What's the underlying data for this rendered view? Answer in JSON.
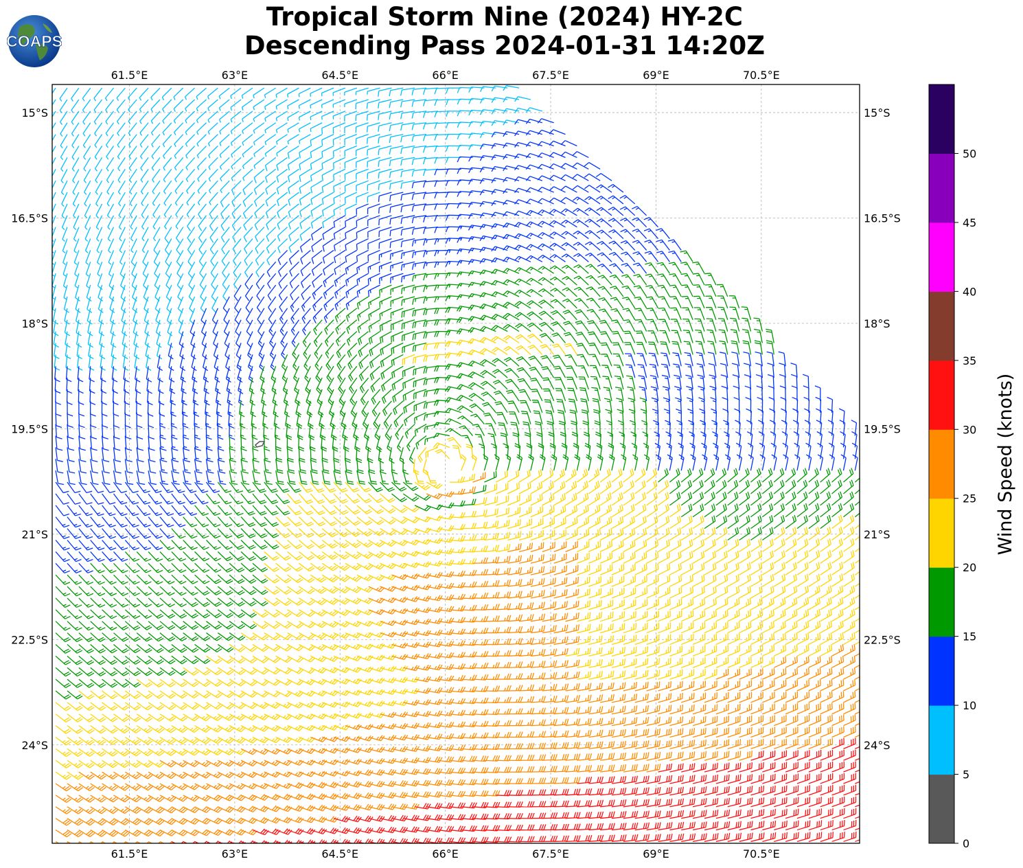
{
  "title": {
    "line1": "Tropical Storm Nine (2024) HY-2C",
    "line2": "Descending Pass 2024-01-31 14:20Z"
  },
  "logo": {
    "text": "COAPS",
    "icon": "globe-icon"
  },
  "map": {
    "lon_range": [
      60.4,
      71.9
    ],
    "lat_range": [
      -25.4,
      -14.6
    ],
    "lon_ticks": [
      "61.5°E",
      "63°E",
      "64.5°E",
      "66°E",
      "67.5°E",
      "69°E",
      "70.5°E"
    ],
    "lat_ticks": [
      "15°S",
      "16.5°S",
      "18°S",
      "19.5°S",
      "21°S",
      "22.5°S",
      "24°S"
    ],
    "gridlines": true,
    "storm_center": {
      "lon": 65.95,
      "lat": -20.1
    }
  },
  "colorbar": {
    "label": "Wind Speed (knots)",
    "ticks": [
      "0",
      "5",
      "10",
      "15",
      "20",
      "25",
      "30",
      "35",
      "40",
      "45",
      "50"
    ],
    "colors": [
      "#595959",
      "#00bfff",
      "#0033ff",
      "#009900",
      "#ffd500",
      "#ff8c00",
      "#ff1111",
      "#843c2c",
      "#ff00ff",
      "#8800bb",
      "#2a0060"
    ]
  }
}
